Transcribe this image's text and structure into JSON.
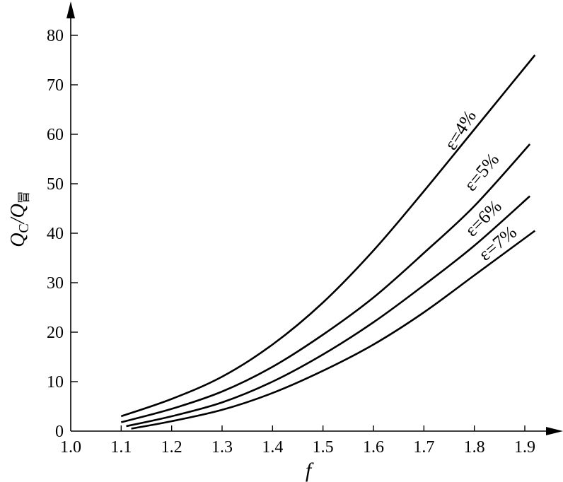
{
  "chart_data": {
    "type": "line",
    "xlabel": "f",
    "ylabel": {
      "main": "Q",
      "sub1": "C",
      "slash": "/",
      "main2": "Q",
      "sub2": "冒"
    },
    "xlim": [
      1.0,
      1.9
    ],
    "ylim": [
      0,
      80
    ],
    "x_ticks": [
      "1.0",
      "1.1",
      "1.2",
      "1.3",
      "1.4",
      "1.5",
      "1.6",
      "1.7",
      "1.8",
      "1.9"
    ],
    "y_ticks": [
      "0",
      "10",
      "20",
      "30",
      "40",
      "50",
      "60",
      "70",
      "80"
    ],
    "grid": false,
    "series": [
      {
        "name": "ε=4%",
        "x": [
          1.1,
          1.2,
          1.3,
          1.4,
          1.5,
          1.6,
          1.7,
          1.8,
          1.92
        ],
        "y": [
          3.0,
          6.5,
          11.0,
          17.5,
          26.0,
          36.5,
          48.5,
          61.0,
          76.0
        ]
      },
      {
        "name": "ε=5%",
        "x": [
          1.1,
          1.2,
          1.3,
          1.4,
          1.5,
          1.6,
          1.7,
          1.8,
          1.91
        ],
        "y": [
          1.8,
          4.5,
          8.0,
          13.0,
          19.5,
          27.0,
          36.0,
          45.5,
          58.0
        ]
      },
      {
        "name": "ε=6%",
        "x": [
          1.11,
          1.2,
          1.3,
          1.4,
          1.5,
          1.6,
          1.7,
          1.8,
          1.91
        ],
        "y": [
          1.0,
          3.0,
          5.8,
          10.0,
          15.5,
          22.0,
          29.5,
          37.5,
          47.5
        ]
      },
      {
        "name": "ε=7%",
        "x": [
          1.12,
          1.2,
          1.3,
          1.4,
          1.5,
          1.6,
          1.7,
          1.8,
          1.92
        ],
        "y": [
          0.5,
          2.0,
          4.3,
          7.7,
          12.2,
          17.5,
          24.0,
          31.5,
          40.5
        ]
      }
    ]
  }
}
